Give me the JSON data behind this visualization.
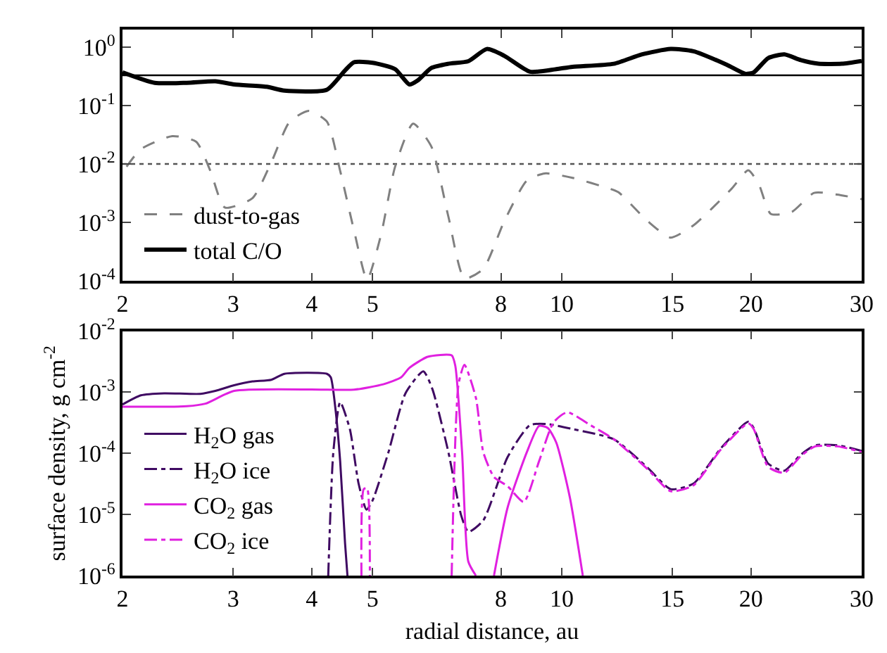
{
  "chart_data": [
    {
      "type": "line",
      "xlim": [
        2,
        30
      ],
      "ylim": [
        0.0001,
        2
      ],
      "log": "xy",
      "grid": false,
      "legend": "bottom left",
      "marker": "none",
      "xticks": [
        2,
        3,
        4,
        5,
        8,
        10,
        15,
        20,
        30
      ],
      "yticks": [
        {
          "value": 0.0001,
          "label": "10$^{-4}$"
        },
        {
          "value": 0.001,
          "label": "10$^{-3}$"
        },
        {
          "value": 0.01,
          "label": "10$^{-2}$"
        },
        {
          "value": 0.1,
          "label": "10$^{-1}$"
        },
        {
          "value": 1,
          "label": "10$^{0}$"
        }
      ],
      "ref_lines": [
        {
          "axis": "y",
          "value": 0.33,
          "color": "#000000",
          "line_style": "solid"
        },
        {
          "axis": "y",
          "value": 0.01,
          "color": "#555555",
          "line_style": "dotted"
        }
      ],
      "series": [
        {
          "name": "dust-to-gas",
          "color": "#808080",
          "line_style": "dashed",
          "x": [
            2.03,
            2.14,
            2.4,
            2.62,
            2.76,
            2.91,
            3.22,
            3.45,
            3.69,
            3.96,
            4.23,
            4.44,
            4.67,
            4.9,
            5.16,
            5.43,
            5.8,
            6.2,
            6.6,
            7.0,
            7.5,
            8.1,
            8.8,
            9.4,
            10.4,
            11.9,
            12.3,
            13.7,
            14.9,
            16.2,
            18.6,
            19.8,
            20.6,
            21.5,
            23.2,
            25.2,
            27.4,
            30
          ],
          "values": [
            0.009,
            0.018,
            0.03,
            0.024,
            0.0076,
            0.0018,
            0.0026,
            0.0107,
            0.053,
            0.081,
            0.053,
            0.0076,
            0.00074,
            0.000105,
            0.00063,
            0.009,
            0.049,
            0.02,
            0.00126,
            0.00011,
            0.00016,
            0.00105,
            0.0052,
            0.0069,
            0.0058,
            0.0038,
            0.0033,
            0.00105,
            0.00055,
            0.00089,
            0.0037,
            0.0078,
            0.0044,
            0.0014,
            0.0015,
            0.0032,
            0.003,
            0.0025
          ]
        },
        {
          "name": "total C/O",
          "color": "#000000",
          "line_style": "solid",
          "x": [
            2,
            2.25,
            2.53,
            2.81,
            3.01,
            3.39,
            3.62,
            4.23,
            4.52,
            4.67,
            5.0,
            5.43,
            5.72,
            5.9,
            6.2,
            6.6,
            7.1,
            7.6,
            8.1,
            8.9,
            9.8,
            10.4,
            12.1,
            13.4,
            14.9,
            16.2,
            18.3,
            19.6,
            20.2,
            21.3,
            22.6,
            24.0,
            25.6,
            27.9,
            30
          ],
          "values": [
            0.37,
            0.245,
            0.245,
            0.26,
            0.23,
            0.21,
            0.18,
            0.187,
            0.4,
            0.55,
            0.54,
            0.42,
            0.23,
            0.27,
            0.44,
            0.52,
            0.575,
            0.93,
            0.71,
            0.38,
            0.42,
            0.46,
            0.52,
            0.75,
            0.93,
            0.85,
            0.5,
            0.35,
            0.37,
            0.65,
            0.75,
            0.6,
            0.52,
            0.52,
            0.58
          ]
        }
      ]
    },
    {
      "type": "line",
      "xlim": [
        2,
        30
      ],
      "ylim": [
        1e-06,
        0.01
      ],
      "log": "xy",
      "grid": false,
      "legend": "left",
      "marker": "none",
      "xlabel": "radial distance, au",
      "ylabel": "surface density, g cm$^{-2}$",
      "xticks": [
        2,
        3,
        4,
        5,
        8,
        10,
        15,
        20,
        30
      ],
      "yticks": [
        {
          "value": 1e-06,
          "label": "10$^{-6}$"
        },
        {
          "value": 1e-05,
          "label": "10$^{-5}$"
        },
        {
          "value": 0.0001,
          "label": "10$^{-4}$"
        },
        {
          "value": 0.001,
          "label": "10$^{-3}$"
        },
        {
          "value": 0.01,
          "label": "10$^{-2}$"
        }
      ],
      "series": [
        {
          "name": "H$_{2}$O gas",
          "color": "#3f0a62",
          "line_style": "solid",
          "x": [
            2,
            2.14,
            2.33,
            2.66,
            2.81,
            3.01,
            3.22,
            3.45,
            3.62,
            4.23,
            4.29,
            4.36,
            4.44,
            4.52,
            4.56
          ],
          "values": [
            0.00063,
            0.00089,
            0.00096,
            0.00094,
            0.00105,
            0.0013,
            0.0015,
            0.0016,
            0.002,
            0.002,
            0.00175,
            0.00058,
            7.4e-05,
            3.4e-06,
            1e-06
          ]
        },
        {
          "name": "H$_{2}$O ice",
          "color": "#3f0a62",
          "line_style": "dashdot",
          "x": [
            4.25,
            4.33,
            4.44,
            4.6,
            4.75,
            4.89,
            5.0,
            5.3,
            5.64,
            6.02,
            6.22,
            6.6,
            6.92,
            7.1,
            7.5,
            8.2,
            8.9,
            9.5,
            10.4,
            12.1,
            13.7,
            14.9,
            16.2,
            17.9,
            19.8,
            20.2,
            21.3,
            22.6,
            24.0,
            25.3,
            27.5,
            30
          ],
          "values": [
            1e-06,
            0.000105,
            0.00069,
            0.00025,
            3.2e-05,
            1.2e-05,
            1.7e-05,
            0.000105,
            0.00096,
            0.0022,
            0.00115,
            0.000105,
            9.5e-06,
            5.2e-06,
            8e-06,
            8.7e-05,
            0.00029,
            0.0003,
            0.00025,
            0.00017,
            5.8e-05,
            2.6e-05,
            3.2e-05,
            0.00012,
            0.00033,
            0.00026,
            6.8e-05,
            5.2e-05,
            9.5e-05,
            0.000135,
            0.000135,
            0.00011
          ]
        },
        {
          "name": "CO$_{2}$ gas",
          "color": "#e020e0",
          "line_style": "solid",
          "x": [
            2,
            2.53,
            2.71,
            3.01,
            4.23,
            4.67,
            5.2,
            5.55,
            5.72,
            6.12,
            6.68,
            6.77,
            6.94,
            7.1,
            7.3,
            7.55,
            7.8,
            8.2,
            8.8,
            9.2,
            9.5,
            9.8,
            10.3,
            10.8
          ],
          "values": [
            0.00058,
            0.00059,
            0.00065,
            0.00105,
            0.0011,
            0.0011,
            0.00135,
            0.00175,
            0.0025,
            0.0038,
            0.004,
            0.0027,
            0.000105,
            1.7e-06,
            1e-06,
            null,
            1e-06,
            1.3e-05,
            0.000105,
            0.00028,
            0.00026,
            0.00015,
            1.9e-05,
            1e-06
          ]
        },
        {
          "name": "CO$_{2}$ ice",
          "color": "#e020e0",
          "line_style": "dashdot",
          "x": [
            4.8,
            4.84,
            4.9,
            4.95,
            5.5,
            6.68,
            6.85,
            7.0,
            7.3,
            7.5,
            7.8,
            8.2,
            8.7,
            9.2,
            9.7,
            10.2,
            11.1,
            12.1,
            13.7,
            14.9,
            16.2,
            17.9,
            19.8,
            20.2,
            21.3,
            22.6,
            24.0,
            25.3,
            27.5,
            30
          ],
          "values": [
            1e-06,
            2.6e-05,
            2.7e-05,
            1e-06,
            null,
            1e-06,
            0.00135,
            0.0028,
            0.00081,
            0.000105,
            4.1e-05,
            2.9e-05,
            1.6e-05,
            7.4e-05,
            0.00032,
            0.00047,
            0.00029,
            0.00017,
            5.5e-05,
            2.4e-05,
            3e-05,
            0.000115,
            0.00031,
            0.00025,
            6e-05,
            4.8e-05,
            9e-05,
            0.00013,
            0.00013,
            0.000105
          ]
        }
      ]
    }
  ]
}
